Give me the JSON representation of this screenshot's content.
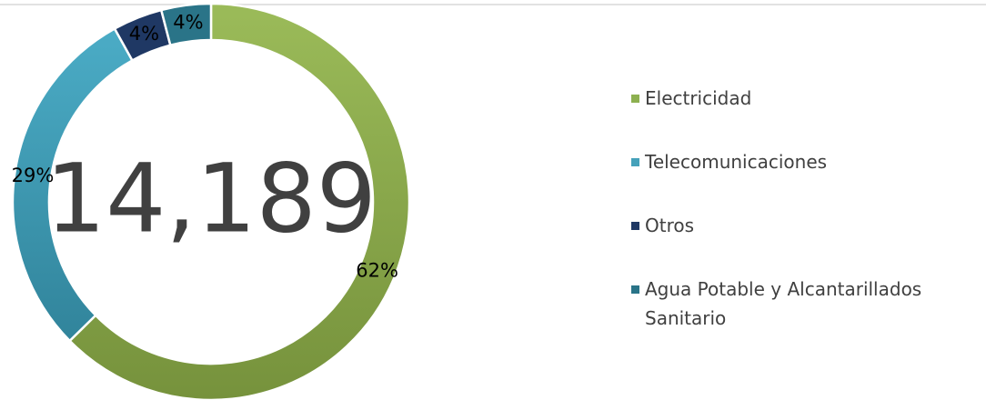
{
  "chart_data": {
    "type": "donut",
    "categories": [
      "Electricidad",
      "Telecomunicaciones",
      "Otros",
      "Agua Potable y Alcantarillados Sanitario"
    ],
    "values": [
      62,
      29,
      4,
      4
    ],
    "value_labels": [
      "62%",
      "29%",
      "4%",
      "4%"
    ],
    "colors": [
      "#8db050",
      "#45a1ba",
      "#1f3864",
      "#2a7488"
    ],
    "center_label": "14,189"
  }
}
